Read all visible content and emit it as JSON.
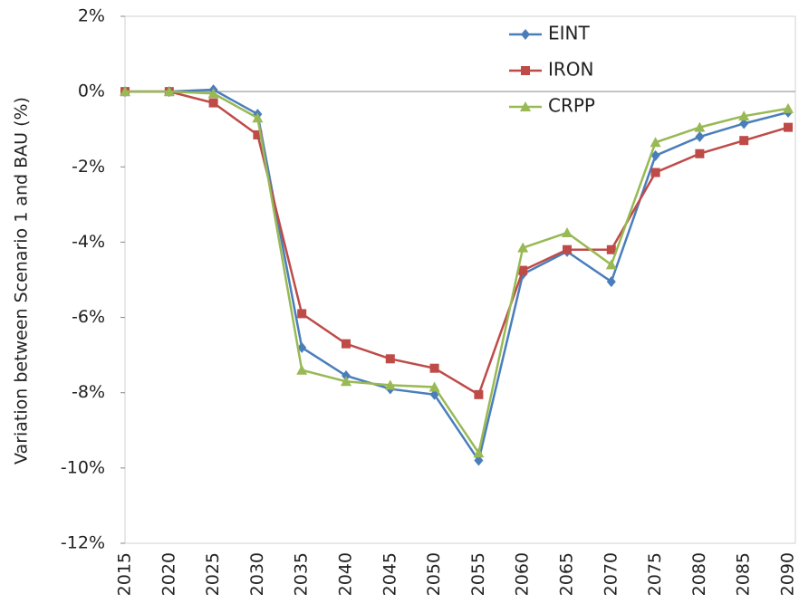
{
  "chart_data": {
    "type": "line",
    "y_label": "Variation between Scenario 1 and BAU (%)",
    "categories": [
      "2015",
      "2020",
      "2025",
      "2030",
      "2035",
      "2040",
      "2045",
      "2050",
      "2055",
      "2060",
      "2065",
      "2070",
      "2075",
      "2080",
      "2085",
      "2090"
    ],
    "series": [
      {
        "name": "EINT",
        "color": "#4a7ebb",
        "marker": "diamond",
        "values": [
          0,
          0,
          0.05,
          -0.6,
          -6.8,
          -7.55,
          -7.9,
          -8.05,
          -9.8,
          -4.85,
          -4.25,
          -5.05,
          -1.7,
          -1.2,
          -0.85,
          -0.55
        ]
      },
      {
        "name": "IRON",
        "color": "#be4b48",
        "marker": "square",
        "values": [
          0,
          0,
          -0.3,
          -1.15,
          -5.9,
          -6.7,
          -7.1,
          -7.35,
          -8.05,
          -4.75,
          -4.2,
          -4.2,
          -2.15,
          -1.65,
          -1.3,
          -0.95
        ]
      },
      {
        "name": "CRPP",
        "color": "#98b954",
        "marker": "triangle",
        "values": [
          0,
          0,
          -0.05,
          -0.7,
          -7.4,
          -7.7,
          -7.8,
          -7.85,
          -9.6,
          -4.15,
          -3.75,
          -4.6,
          -1.35,
          -0.95,
          -0.65,
          -0.45
        ]
      }
    ],
    "ylim": [
      -12,
      2
    ],
    "yticks": [
      {
        "value": -12,
        "label": "-12%"
      },
      {
        "value": -10,
        "label": "-10%"
      },
      {
        "value": -8,
        "label": "-8%"
      },
      {
        "value": -6,
        "label": "-6%"
      },
      {
        "value": -4,
        "label": "-4%"
      },
      {
        "value": -2,
        "label": "-2%"
      },
      {
        "value": 0,
        "label": "0%"
      },
      {
        "value": 2,
        "label": "2%"
      }
    ],
    "zero_line": true,
    "legend": "top-right"
  }
}
